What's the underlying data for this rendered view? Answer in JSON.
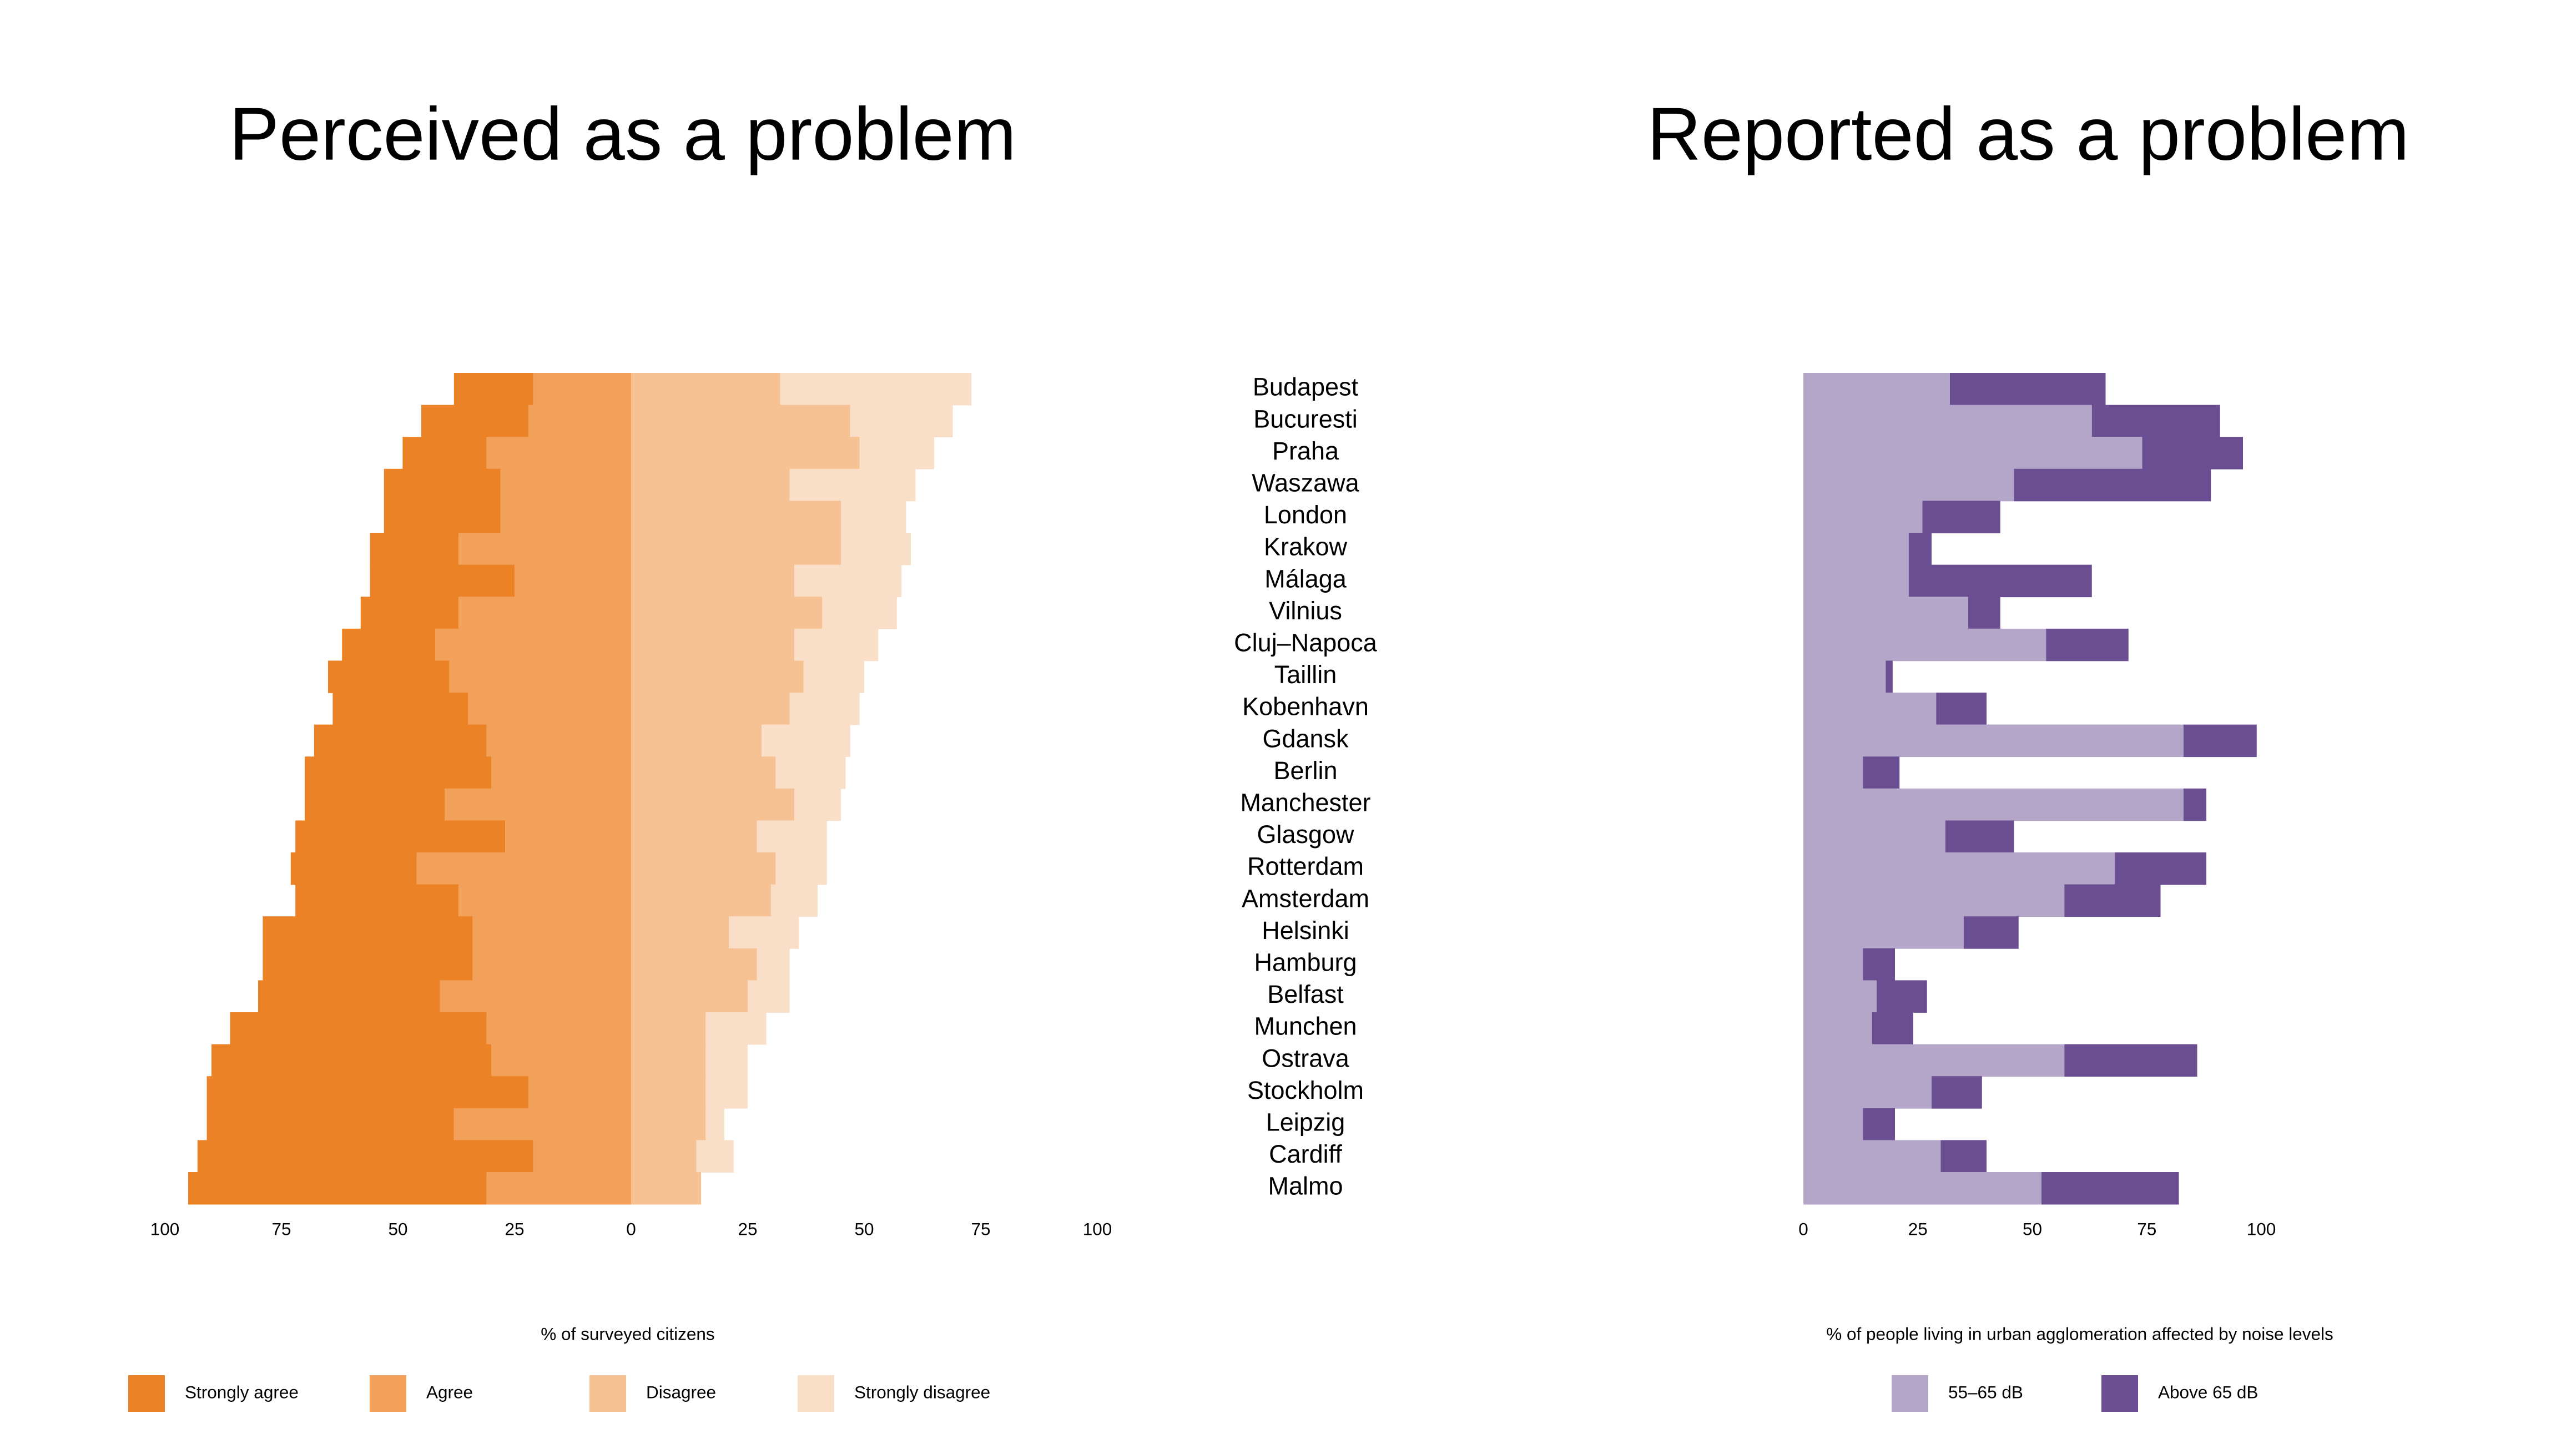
{
  "chart_data": [
    {
      "type": "bar",
      "orientation": "horizontal",
      "diverging": true,
      "title": "Perceived as a problem",
      "xlabel": "% of surveyed citizens",
      "categories": [
        "Budapest",
        "Bucuresti",
        "Praha",
        "Waszawa",
        "London",
        "Krakow",
        "Málaga",
        "Vilnius",
        "Cluj–Napoca",
        "Taillin",
        "Kobenhavn",
        "Gdansk",
        "Berlin",
        "Manchester",
        "Glasgow",
        "Rotterdam",
        "Amsterdam",
        "Helsinki",
        "Hamburg",
        "Belfast",
        "Munchen",
        "Ostrava",
        "Stockholm",
        "Leipzig",
        "Cardiff",
        "Malmo"
      ],
      "series": [
        {
          "name": "Strongly agree",
          "color": "#ec8226",
          "side": "left",
          "values": [
            17,
            23,
            18,
            25,
            25,
            19,
            31,
            21,
            20,
            26,
            29,
            37,
            40,
            30,
            45,
            27,
            35,
            45,
            45,
            39,
            55,
            60,
            69,
            53,
            72,
            64
          ]
        },
        {
          "name": "Agree",
          "color": "#f2a05a",
          "side": "left",
          "values": [
            21,
            22,
            31,
            28,
            28,
            37,
            25,
            37,
            42,
            39,
            35,
            31,
            30,
            40,
            27,
            46,
            37,
            34,
            34,
            41,
            31,
            30,
            22,
            38,
            21,
            31
          ]
        },
        {
          "name": "Disagree",
          "color": "#f7c293",
          "side": "right",
          "values": [
            32,
            47,
            49,
            34,
            45,
            45,
            35,
            41,
            35,
            37,
            34,
            28,
            31,
            35,
            27,
            31,
            30,
            21,
            27,
            25,
            16,
            16,
            16,
            16,
            14,
            15
          ]
        },
        {
          "name": "Strongly disagree",
          "color": "#f9dfc8",
          "side": "right",
          "values": [
            41,
            22,
            16,
            27,
            14,
            15,
            23,
            16,
            18,
            13,
            15,
            19,
            15,
            10,
            15,
            11,
            10,
            15,
            7,
            9,
            13,
            9,
            9,
            4,
            8,
            0
          ]
        }
      ],
      "xlim": [
        -100,
        100
      ],
      "xticks": [
        {
          "value": -100,
          "label": "100"
        },
        {
          "value": -75,
          "label": "75"
        },
        {
          "value": -50,
          "label": "50"
        },
        {
          "value": -25,
          "label": "25"
        },
        0,
        25,
        50,
        75,
        100
      ]
    },
    {
      "type": "bar",
      "orientation": "horizontal",
      "stacked": true,
      "title": "Reported as a problem",
      "xlabel": "% of people living in urban agglomeration affected by noise levels",
      "series": [
        {
          "name": "55–65 dB",
          "color": "#b3a6c9",
          "values": [
            32,
            63,
            74,
            46,
            26,
            23,
            23,
            36,
            53,
            18,
            29,
            83,
            13,
            83,
            31,
            68,
            57,
            35,
            13,
            16,
            15,
            57,
            28,
            13,
            30,
            52
          ]
        },
        {
          "name": "Above 65 dB",
          "color": "#6b4e91",
          "values": [
            34,
            28,
            22,
            43,
            17,
            5,
            40,
            7,
            18,
            1.5,
            11,
            16,
            8,
            5,
            15,
            20,
            21,
            12,
            7,
            11,
            9,
            29,
            11,
            7,
            10,
            30
          ]
        }
      ],
      "xlim": [
        0,
        100
      ],
      "xticks": [
        0,
        25,
        50,
        75,
        100
      ]
    }
  ]
}
